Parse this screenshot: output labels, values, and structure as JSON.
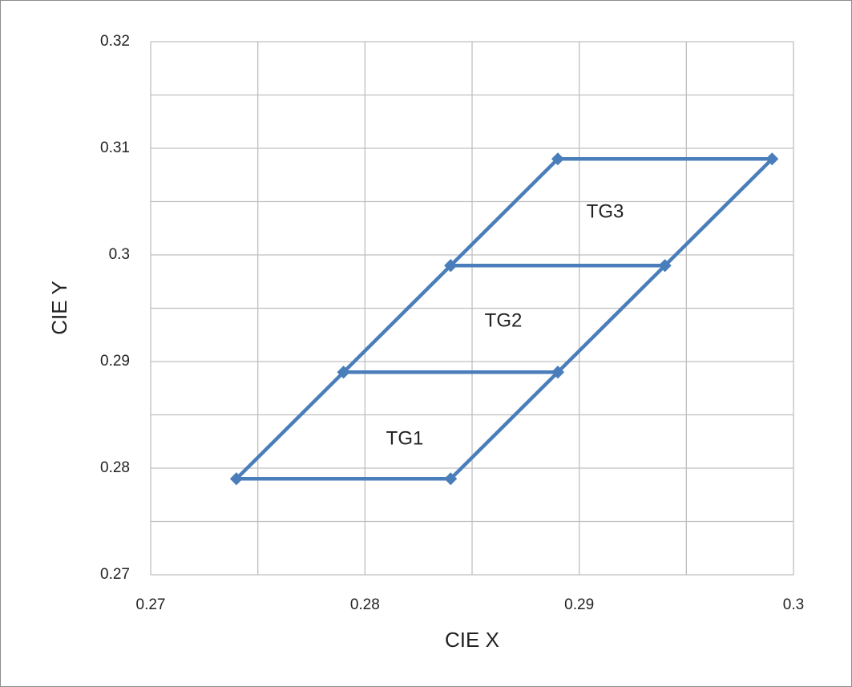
{
  "chart_data": {
    "type": "line",
    "x_label": "CIE X",
    "y_label": "CIE Y",
    "xlim": [
      0.27,
      0.3
    ],
    "ylim": [
      0.27,
      0.32
    ],
    "xticks": [
      0.27,
      0.28,
      0.29,
      0.3
    ],
    "yticks": [
      0.27,
      0.28,
      0.29,
      0.3,
      0.31,
      0.32
    ],
    "x_minor_grid": [
      0.275,
      0.285,
      0.295
    ],
    "y_minor_grid": [
      0.275,
      0.285,
      0.295,
      0.305,
      0.315
    ],
    "grid": true,
    "series": [
      {
        "color": "#4a7ebb",
        "x": [
          0.274,
          0.284,
          0.289,
          0.279,
          0.274
        ],
        "y": [
          0.279,
          0.279,
          0.289,
          0.289,
          0.279
        ]
      },
      {
        "color": "#4a7ebb",
        "x": [
          0.279,
          0.289,
          0.294,
          0.284,
          0.279
        ],
        "y": [
          0.289,
          0.289,
          0.299,
          0.299,
          0.289
        ]
      },
      {
        "color": "#4a7ebb",
        "x": [
          0.284,
          0.294,
          0.299,
          0.289,
          0.284
        ],
        "y": [
          0.299,
          0.299,
          0.309,
          0.309,
          0.299
        ]
      }
    ],
    "annotations": [
      "TG1",
      "TG2",
      "TG3"
    ]
  }
}
